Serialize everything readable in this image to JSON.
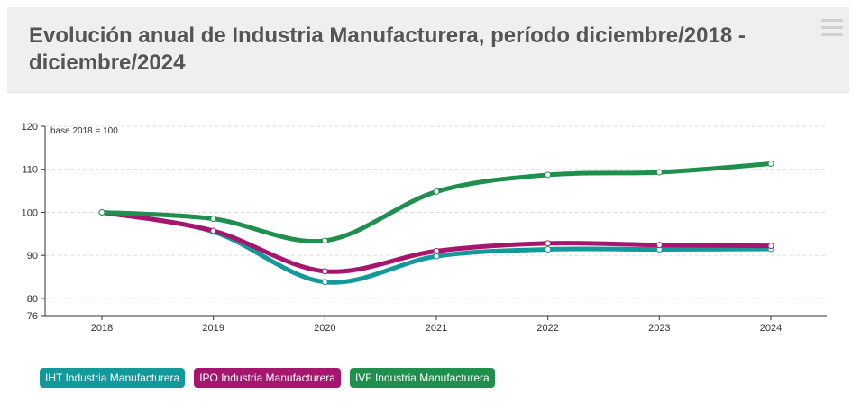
{
  "header": {
    "title": "Evolución anual de Industria Manufacturera, período diciembre/2018 - diciembre/2024",
    "menu_icon": "hamburger-menu-icon"
  },
  "chart_data": {
    "type": "line",
    "title": "Evolución anual de Industria Manufacturera, período diciembre/2018 - diciembre/2024",
    "annotation": "base 2018 = 100",
    "xlabel": "",
    "ylabel": "",
    "x": [
      "2018",
      "2019",
      "2020",
      "2021",
      "2022",
      "2023",
      "2024"
    ],
    "ylim": [
      76,
      120
    ],
    "yticks": [
      76,
      80,
      90,
      100,
      110,
      120
    ],
    "grid": true,
    "legend": "bottom-left",
    "series": [
      {
        "name": "IHT Industria Manufacturera",
        "color": "#13999b",
        "values": [
          100,
          95.5,
          83.8,
          89.8,
          91.4,
          91.4,
          91.5
        ]
      },
      {
        "name": "IPO Industria Manufacturera",
        "color": "#a5176f",
        "values": [
          100,
          95.7,
          86.3,
          91.0,
          92.8,
          92.4,
          92.2
        ]
      },
      {
        "name": "IVF Industria Manufacturera",
        "color": "#1f8f4e",
        "values": [
          100,
          98.5,
          93.4,
          104.8,
          108.7,
          109.3,
          111.3
        ]
      }
    ]
  }
}
